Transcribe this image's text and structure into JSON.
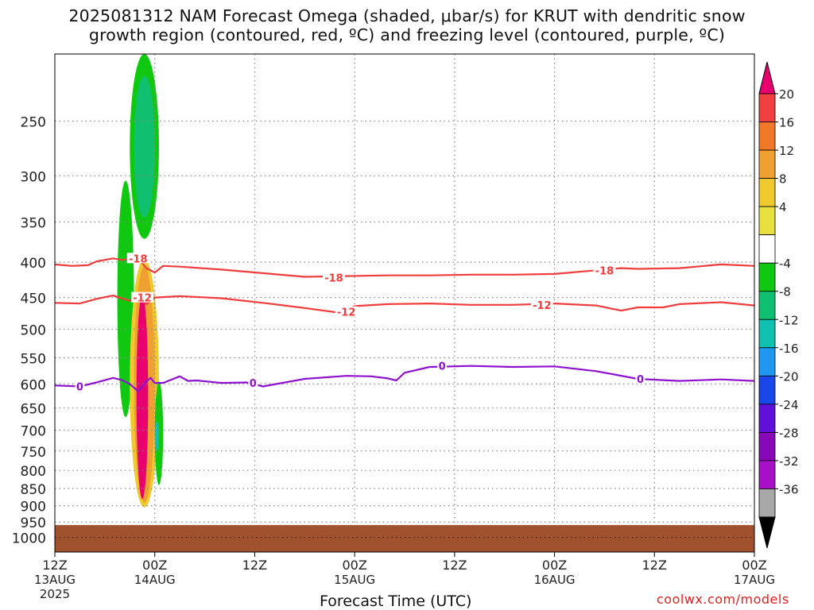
{
  "title_line1": "2025081312 NAM Forecast Omega (shaded, μbar/s) for KRUT with dendritic snow",
  "title_line2": "growth region (contoured, red, ºC) and freezing level (contoured, purple, ºC)",
  "credit": "coolwx.com/models",
  "colors": {
    "isotherm": "#f03c3c",
    "freezing": "#9010d0",
    "ground": "#a0522d",
    "grid": "#888888"
  },
  "chart_data": {
    "type": "heatmap",
    "title": "2025081312 NAM Forecast Omega (shaded, μbar/s) for KRUT with dendritic snow growth region (contoured, red, ºC) and freezing level (contoured, purple, ºC)",
    "xlabel": "Forecast Time (UTC)",
    "ylabel": "",
    "y_scale": "log-pressure (hPa)",
    "y_range": [
      1050,
      200
    ],
    "y_ticks": [
      250,
      300,
      350,
      400,
      450,
      500,
      550,
      600,
      650,
      700,
      750,
      800,
      850,
      900,
      950,
      1000
    ],
    "x_range_hours": [
      0,
      84
    ],
    "x_ticks": [
      {
        "hour": 0,
        "line1": "12Z",
        "line2": "13AUG",
        "line3": "2025"
      },
      {
        "hour": 12,
        "line1": "00Z",
        "line2": "14AUG",
        "line3": ""
      },
      {
        "hour": 24,
        "line1": "12Z",
        "line2": "",
        "line3": ""
      },
      {
        "hour": 36,
        "line1": "00Z",
        "line2": "15AUG",
        "line3": ""
      },
      {
        "hour": 48,
        "line1": "12Z",
        "line2": "",
        "line3": ""
      },
      {
        "hour": 60,
        "line1": "00Z",
        "line2": "16AUG",
        "line3": ""
      },
      {
        "hour": 72,
        "line1": "12Z",
        "line2": "",
        "line3": ""
      },
      {
        "hour": 84,
        "line1": "00Z",
        "line2": "17AUG",
        "line3": ""
      }
    ],
    "grid": true,
    "colorbar": {
      "labels": [
        "20",
        "16",
        "12",
        "8",
        "4",
        "-4",
        "-8",
        "-12",
        "-16",
        "-20",
        "-24",
        "-28",
        "-32",
        "-36"
      ],
      "colors": [
        "#e8006e",
        "#f04040",
        "#f07828",
        "#f0a030",
        "#f0c830",
        "#e8e040",
        "#ffffff",
        "#10c810",
        "#10c070",
        "#10c0b0",
        "#2098f0",
        "#1848e8",
        "#6010d8",
        "#8808b8",
        "#a810c8",
        "#a8a8a8",
        "#000000"
      ]
    },
    "omega_features": [
      {
        "level": -8,
        "hour_range": [
          9,
          12.5
        ],
        "p_range": [
          200,
          370
        ],
        "color": "#10c810"
      },
      {
        "level": -12,
        "hour_range": [
          9.5,
          12
        ],
        "p_range": [
          215,
          345
        ],
        "color": "#10c070"
      },
      {
        "level": -4,
        "hour_range": [
          7.5,
          9.5
        ],
        "p_range": [
          305,
          670
        ],
        "color": "#10c810"
      },
      {
        "level": 8,
        "hour_range": [
          9,
          12.5
        ],
        "p_range": [
          395,
          905
        ],
        "color": "#f0c830"
      },
      {
        "level": 12,
        "hour_range": [
          9.5,
          12
        ],
        "p_range": [
          405,
          890
        ],
        "color": "#f0a030"
      },
      {
        "level": 20,
        "hour_range": [
          9.8,
          11.2
        ],
        "p_range": [
          445,
          880
        ],
        "color": "#e8006e"
      },
      {
        "level": -4,
        "hour_range": [
          12,
          13
        ],
        "p_range": [
          595,
          840
        ],
        "color": "#10c810"
      },
      {
        "level": -12,
        "hour_range": [
          12,
          12.5
        ],
        "p_range": [
          680,
          750
        ],
        "color": "#10c0b0"
      }
    ],
    "series": [
      {
        "name": "-18",
        "label": "-18",
        "x": [
          0,
          2,
          4,
          5,
          7,
          8,
          10,
          11,
          12,
          13,
          15,
          20,
          30,
          40,
          45,
          50,
          55,
          60,
          65,
          68,
          70,
          75,
          80,
          84
        ],
        "y": [
          403,
          405,
          404,
          399,
          395,
          397,
          395,
          408,
          414,
          405,
          406,
          410,
          420,
          418,
          418,
          417,
          417,
          416,
          411,
          408,
          409,
          408,
          403,
          405
        ]
      },
      {
        "name": "-12",
        "label": "-12",
        "x": [
          0,
          3,
          5,
          7,
          9,
          10,
          11,
          12,
          15,
          20,
          25,
          30,
          34,
          36,
          40,
          45,
          50,
          55,
          60,
          65,
          68,
          70,
          73,
          75,
          80,
          84
        ],
        "y": [
          458,
          459,
          452,
          447,
          455,
          448,
          460,
          450,
          448,
          451,
          458,
          466,
          473,
          463,
          460,
          459,
          461,
          461,
          459,
          462,
          470,
          465,
          465,
          460,
          457,
          462
        ]
      },
      {
        "name": "0",
        "label": "0",
        "x": [
          0,
          3,
          5,
          7,
          8,
          9,
          10,
          11,
          11.5,
          12,
          13,
          15,
          16,
          17,
          20,
          23,
          25,
          30,
          35,
          38,
          40,
          41,
          42,
          45,
          50,
          55,
          60,
          65,
          70,
          75,
          80,
          84
        ],
        "y": [
          603,
          605,
          597,
          588,
          592,
          600,
          615,
          595,
          588,
          598,
          598,
          585,
          594,
          593,
          598,
          597,
          605,
          590,
          584,
          585,
          589,
          593,
          578,
          567,
          565,
          567,
          566,
          575,
          590,
          594,
          591,
          594
        ]
      }
    ],
    "contour_labels": [
      {
        "text": "-18",
        "hour": 10,
        "p": 395
      },
      {
        "text": "-18",
        "hour": 33.5,
        "p": 421
      },
      {
        "text": "-18",
        "hour": 66,
        "p": 411
      },
      {
        "text": "-12",
        "hour": 10.5,
        "p": 450
      },
      {
        "text": "-12",
        "hour": 35,
        "p": 472
      },
      {
        "text": "-12",
        "hour": 58.5,
        "p": 461
      },
      {
        "text": "0",
        "hour": 3,
        "p": 605
      },
      {
        "text": "0",
        "hour": 23.8,
        "p": 598
      },
      {
        "text": "0",
        "hour": 46.5,
        "p": 565
      },
      {
        "text": "0",
        "hour": 70.3,
        "p": 590
      }
    ],
    "ground_pressure_top": 960
  }
}
